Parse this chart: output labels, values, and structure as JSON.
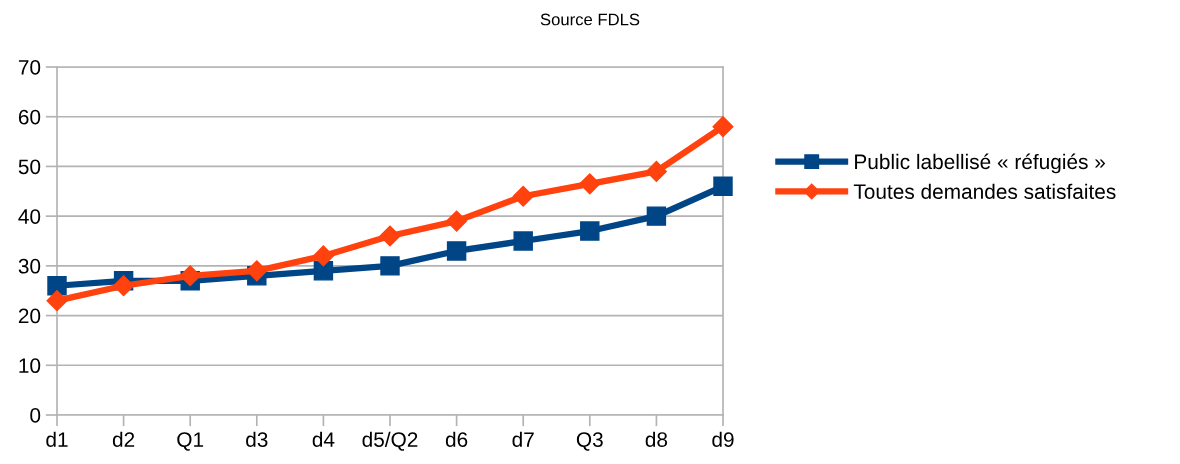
{
  "chart_data": {
    "type": "line",
    "title": "Source FDLS",
    "categories": [
      "d1",
      "d2",
      "Q1",
      "d3",
      "d4",
      "d5/Q2",
      "d6",
      "d7",
      "Q3",
      "d8",
      "d9"
    ],
    "series": [
      {
        "name": "Public labellisé « réfugiés »",
        "color": "#004586",
        "marker": "square",
        "values": [
          26,
          27,
          27,
          28,
          29,
          30,
          33,
          35,
          37,
          40,
          46
        ]
      },
      {
        "name": "Toutes demandes satisfaites",
        "color": "#ff420e",
        "marker": "diamond",
        "values": [
          23,
          26,
          28,
          29,
          32,
          36,
          39,
          44,
          46.5,
          49,
          58
        ]
      }
    ],
    "ylim": [
      0,
      70
    ],
    "yticks": [
      0,
      10,
      20,
      30,
      40,
      50,
      60,
      70
    ],
    "grid": "y",
    "legend": "right",
    "line_style": "solid"
  }
}
